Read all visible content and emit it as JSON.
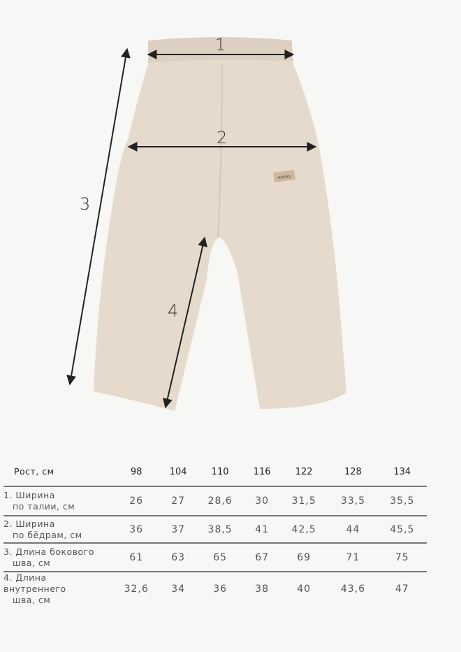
{
  "image": {
    "product": "pants",
    "garment_color": "#e6dacd",
    "label_text": "MINAKU",
    "markers": [
      "1",
      "2",
      "3",
      "4"
    ]
  },
  "table": {
    "header_label": "Рост, см",
    "sizes": [
      "98",
      "104",
      "110",
      "116",
      "122",
      "128",
      "134"
    ],
    "rows": [
      {
        "num": "1.",
        "line1": "Ширина",
        "line2": "по талии, см",
        "values": [
          "26",
          "27",
          "28,6",
          "30",
          "31,5",
          "33,5",
          "35,5"
        ]
      },
      {
        "num": "2.",
        "line1": "Ширина",
        "line2": "по бёдрам, см",
        "values": [
          "36",
          "37",
          "38,5",
          "41",
          "42,5",
          "44",
          "45,5"
        ]
      },
      {
        "num": "3.",
        "line1": "Длина бокового",
        "line2": "шва, см",
        "values": [
          "61",
          "63",
          "65",
          "67",
          "69",
          "71",
          "75"
        ]
      },
      {
        "num": "4.",
        "line1": "Длина внутреннего",
        "line2": "шва, см",
        "values": [
          "32,6",
          "34",
          "36",
          "38",
          "40",
          "43,6",
          "47"
        ]
      }
    ]
  }
}
